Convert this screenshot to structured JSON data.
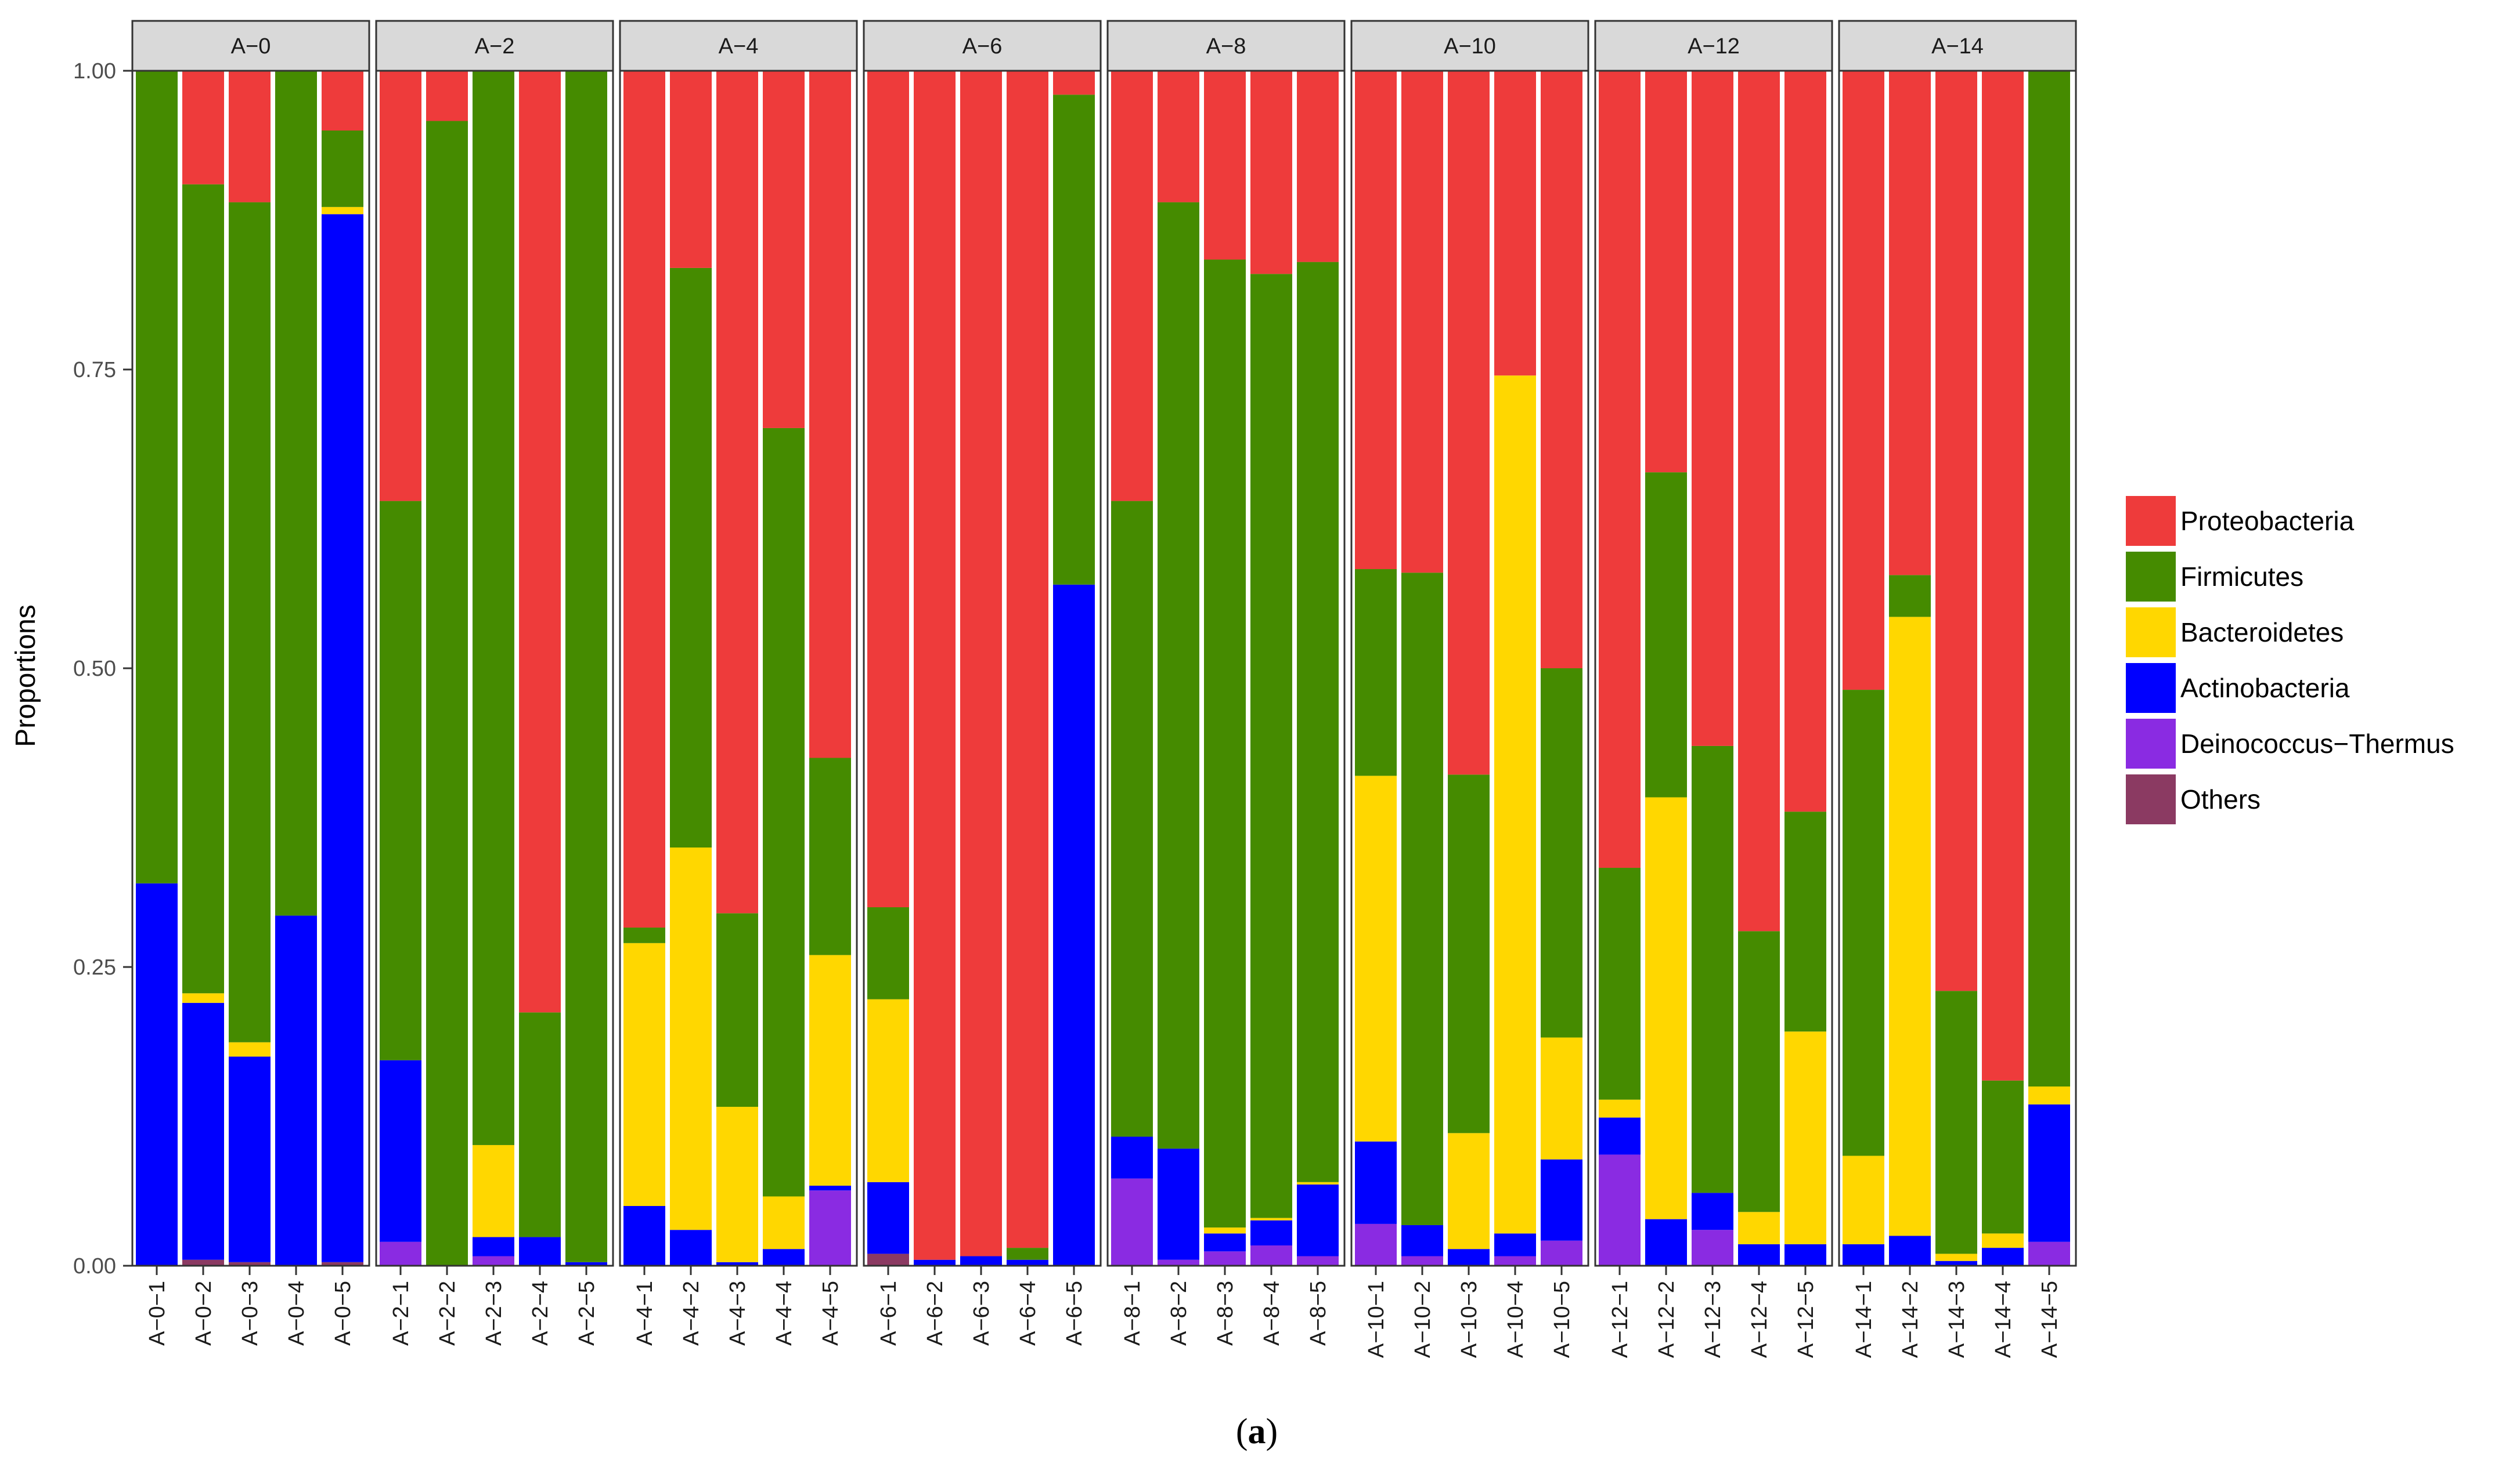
{
  "chart_data": {
    "type": "bar",
    "stacked": true,
    "ylabel": "Proportions",
    "xlabel": "",
    "ylim": [
      0,
      1
    ],
    "yticks": [
      0,
      0.25,
      0.5,
      0.75,
      1
    ],
    "ytick_labels": [
      "0.00",
      "0.25",
      "0.50",
      "0.75",
      "1.00"
    ],
    "caption": {
      "open": "(",
      "letter": "a",
      "close": ")"
    },
    "legend_position": "right",
    "series": [
      {
        "name": "Proteobacteria",
        "color": "#ee3b3b"
      },
      {
        "name": "Firmicutes",
        "color": "#458b00"
      },
      {
        "name": "Bacteroidetes",
        "color": "#ffd700"
      },
      {
        "name": "Actinobacteria",
        "color": "#0000ff"
      },
      {
        "name": "Deinococcus−Thermus",
        "color": "#8a2be2"
      },
      {
        "name": "Others",
        "color": "#8b3a62"
      }
    ],
    "stack_order_bottom_to_top": [
      "Others",
      "Deinococcus−Thermus",
      "Actinobacteria",
      "Bacteroidetes",
      "Firmicutes",
      "Proteobacteria"
    ],
    "facets": [
      {
        "label": "A−0",
        "samples": [
          {
            "label": "A−0−1",
            "values": {
              "Others": 0,
              "Deinococcus−Thermus": 0,
              "Actinobacteria": 0.32,
              "Bacteroidetes": 0,
              "Firmicutes": 0.68,
              "Proteobacteria": 0
            }
          },
          {
            "label": "A−0−2",
            "values": {
              "Others": 0.005,
              "Deinococcus−Thermus": 0,
              "Actinobacteria": 0.215,
              "Bacteroidetes": 0.008,
              "Firmicutes": 0.677,
              "Proteobacteria": 0.095
            }
          },
          {
            "label": "A−0−3",
            "values": {
              "Others": 0.003,
              "Deinococcus−Thermus": 0,
              "Actinobacteria": 0.172,
              "Bacteroidetes": 0.012,
              "Firmicutes": 0.703,
              "Proteobacteria": 0.11
            }
          },
          {
            "label": "A−0−4",
            "values": {
              "Others": 0,
              "Deinococcus−Thermus": 0,
              "Actinobacteria": 0.293,
              "Bacteroidetes": 0,
              "Firmicutes": 0.707,
              "Proteobacteria": 0
            }
          },
          {
            "label": "A−0−5",
            "values": {
              "Others": 0.003,
              "Deinococcus−Thermus": 0,
              "Actinobacteria": 0.877,
              "Bacteroidetes": 0.006,
              "Firmicutes": 0.064,
              "Proteobacteria": 0.05
            }
          }
        ]
      },
      {
        "label": "A−2",
        "samples": [
          {
            "label": "A−2−1",
            "values": {
              "Others": 0,
              "Deinococcus−Thermus": 0.02,
              "Actinobacteria": 0.152,
              "Bacteroidetes": 0,
              "Firmicutes": 0.468,
              "Proteobacteria": 0.36
            }
          },
          {
            "label": "A−2−2",
            "values": {
              "Others": 0,
              "Deinococcus−Thermus": 0,
              "Actinobacteria": 0,
              "Bacteroidetes": 0,
              "Firmicutes": 0.958,
              "Proteobacteria": 0.042
            }
          },
          {
            "label": "A−2−3",
            "values": {
              "Others": 0,
              "Deinococcus−Thermus": 0.008,
              "Actinobacteria": 0.016,
              "Bacteroidetes": 0.077,
              "Firmicutes": 0.899,
              "Proteobacteria": 0
            }
          },
          {
            "label": "A−2−4",
            "values": {
              "Others": 0,
              "Deinococcus−Thermus": 0,
              "Actinobacteria": 0.024,
              "Bacteroidetes": 0,
              "Firmicutes": 0.188,
              "Proteobacteria": 0.788
            }
          },
          {
            "label": "A−2−5",
            "values": {
              "Others": 0,
              "Deinococcus−Thermus": 0,
              "Actinobacteria": 0.003,
              "Bacteroidetes": 0,
              "Firmicutes": 0.997,
              "Proteobacteria": 0
            }
          }
        ]
      },
      {
        "label": "A−4",
        "samples": [
          {
            "label": "A−4−1",
            "values": {
              "Others": 0,
              "Deinococcus−Thermus": 0,
              "Actinobacteria": 0.05,
              "Bacteroidetes": 0.22,
              "Firmicutes": 0.013,
              "Proteobacteria": 0.717
            }
          },
          {
            "label": "A−4−2",
            "values": {
              "Others": 0,
              "Deinococcus−Thermus": 0,
              "Actinobacteria": 0.03,
              "Bacteroidetes": 0.32,
              "Firmicutes": 0.485,
              "Proteobacteria": 0.165
            }
          },
          {
            "label": "A−4−3",
            "values": {
              "Others": 0,
              "Deinococcus−Thermus": 0,
              "Actinobacteria": 0.003,
              "Bacteroidetes": 0.13,
              "Firmicutes": 0.162,
              "Proteobacteria": 0.705
            }
          },
          {
            "label": "A−4−4",
            "values": {
              "Others": 0,
              "Deinococcus−Thermus": 0,
              "Actinobacteria": 0.014,
              "Bacteroidetes": 0.044,
              "Firmicutes": 0.643,
              "Proteobacteria": 0.299
            }
          },
          {
            "label": "A−4−5",
            "values": {
              "Others": 0,
              "Deinococcus−Thermus": 0.063,
              "Actinobacteria": 0.004,
              "Bacteroidetes": 0.193,
              "Firmicutes": 0.165,
              "Proteobacteria": 0.575
            }
          }
        ]
      },
      {
        "label": "A−6",
        "samples": [
          {
            "label": "A−6−1",
            "values": {
              "Others": 0.01,
              "Deinococcus−Thermus": 0,
              "Actinobacteria": 0.06,
              "Bacteroidetes": 0.153,
              "Firmicutes": 0.077,
              "Proteobacteria": 0.7
            }
          },
          {
            "label": "A−6−2",
            "values": {
              "Others": 0,
              "Deinococcus−Thermus": 0,
              "Actinobacteria": 0.005,
              "Bacteroidetes": 0,
              "Firmicutes": 0,
              "Proteobacteria": 0.995
            }
          },
          {
            "label": "A−6−3",
            "values": {
              "Others": 0,
              "Deinococcus−Thermus": 0,
              "Actinobacteria": 0.008,
              "Bacteroidetes": 0,
              "Firmicutes": 0,
              "Proteobacteria": 0.992
            }
          },
          {
            "label": "A−6−4",
            "values": {
              "Others": 0,
              "Deinococcus−Thermus": 0,
              "Actinobacteria": 0.005,
              "Bacteroidetes": 0,
              "Firmicutes": 0.01,
              "Proteobacteria": 0.985
            }
          },
          {
            "label": "A−6−5",
            "values": {
              "Others": 0,
              "Deinococcus−Thermus": 0,
              "Actinobacteria": 0.57,
              "Bacteroidetes": 0,
              "Firmicutes": 0.41,
              "Proteobacteria": 0.02
            }
          }
        ]
      },
      {
        "label": "A−8",
        "samples": [
          {
            "label": "A−8−1",
            "values": {
              "Others": 0,
              "Deinococcus−Thermus": 0.073,
              "Actinobacteria": 0.035,
              "Bacteroidetes": 0,
              "Firmicutes": 0.532,
              "Proteobacteria": 0.36
            }
          },
          {
            "label": "A−8−2",
            "values": {
              "Others": 0,
              "Deinococcus−Thermus": 0.005,
              "Actinobacteria": 0.093,
              "Bacteroidetes": 0,
              "Firmicutes": 0.792,
              "Proteobacteria": 0.11
            }
          },
          {
            "label": "A−8−3",
            "values": {
              "Others": 0,
              "Deinococcus−Thermus": 0.012,
              "Actinobacteria": 0.015,
              "Bacteroidetes": 0.005,
              "Firmicutes": 0.81,
              "Proteobacteria": 0.158
            }
          },
          {
            "label": "A−8−4",
            "values": {
              "Others": 0,
              "Deinococcus−Thermus": 0.017,
              "Actinobacteria": 0.021,
              "Bacteroidetes": 0.002,
              "Firmicutes": 0.79,
              "Proteobacteria": 0.17
            }
          },
          {
            "label": "A−8−5",
            "values": {
              "Others": 0,
              "Deinococcus−Thermus": 0.008,
              "Actinobacteria": 0.06,
              "Bacteroidetes": 0.002,
              "Firmicutes": 0.77,
              "Proteobacteria": 0.16
            }
          }
        ]
      },
      {
        "label": "A−10",
        "samples": [
          {
            "label": "A−10−1",
            "values": {
              "Others": 0,
              "Deinococcus−Thermus": 0.035,
              "Actinobacteria": 0.069,
              "Bacteroidetes": 0.306,
              "Firmicutes": 0.173,
              "Proteobacteria": 0.417
            }
          },
          {
            "label": "A−10−2",
            "values": {
              "Others": 0,
              "Deinococcus−Thermus": 0.008,
              "Actinobacteria": 0.026,
              "Bacteroidetes": 0,
              "Firmicutes": 0.546,
              "Proteobacteria": 0.42
            }
          },
          {
            "label": "A−10−3",
            "values": {
              "Others": 0,
              "Deinococcus−Thermus": 0,
              "Actinobacteria": 0.014,
              "Bacteroidetes": 0.097,
              "Firmicutes": 0.3,
              "Proteobacteria": 0.589
            }
          },
          {
            "label": "A−10−4",
            "values": {
              "Others": 0,
              "Deinococcus−Thermus": 0.008,
              "Actinobacteria": 0.019,
              "Bacteroidetes": 0.718,
              "Firmicutes": 0,
              "Proteobacteria": 0.255
            }
          },
          {
            "label": "A−10−5",
            "values": {
              "Others": 0,
              "Deinococcus−Thermus": 0.021,
              "Actinobacteria": 0.068,
              "Bacteroidetes": 0.102,
              "Firmicutes": 0.309,
              "Proteobacteria": 0.5
            }
          }
        ]
      },
      {
        "label": "A−12",
        "samples": [
          {
            "label": "A−12−1",
            "values": {
              "Others": 0,
              "Deinococcus−Thermus": 0.093,
              "Actinobacteria": 0.031,
              "Bacteroidetes": 0.015,
              "Firmicutes": 0.194,
              "Proteobacteria": 0.667
            }
          },
          {
            "label": "A−12−2",
            "values": {
              "Others": 0,
              "Deinococcus−Thermus": 0,
              "Actinobacteria": 0.039,
              "Bacteroidetes": 0.353,
              "Firmicutes": 0.272,
              "Proteobacteria": 0.336
            }
          },
          {
            "label": "A−12−3",
            "values": {
              "Others": 0,
              "Deinococcus−Thermus": 0.03,
              "Actinobacteria": 0.031,
              "Bacteroidetes": 0,
              "Firmicutes": 0.374,
              "Proteobacteria": 0.565
            }
          },
          {
            "label": "A−12−4",
            "values": {
              "Others": 0,
              "Deinococcus−Thermus": 0,
              "Actinobacteria": 0.018,
              "Bacteroidetes": 0.027,
              "Firmicutes": 0.235,
              "Proteobacteria": 0.72
            }
          },
          {
            "label": "A−12−5",
            "values": {
              "Others": 0,
              "Deinococcus−Thermus": 0,
              "Actinobacteria": 0.018,
              "Bacteroidetes": 0.178,
              "Firmicutes": 0.184,
              "Proteobacteria": 0.62
            }
          }
        ]
      },
      {
        "label": "A−14",
        "samples": [
          {
            "label": "A−14−1",
            "values": {
              "Others": 0,
              "Deinococcus−Thermus": 0,
              "Actinobacteria": 0.018,
              "Bacteroidetes": 0.074,
              "Firmicutes": 0.39,
              "Proteobacteria": 0.518
            }
          },
          {
            "label": "A−14−2",
            "values": {
              "Others": 0,
              "Deinococcus−Thermus": 0,
              "Actinobacteria": 0.025,
              "Bacteroidetes": 0.518,
              "Firmicutes": 0.035,
              "Proteobacteria": 0.422
            }
          },
          {
            "label": "A−14−3",
            "values": {
              "Others": 0,
              "Deinococcus−Thermus": 0,
              "Actinobacteria": 0.004,
              "Bacteroidetes": 0.006,
              "Firmicutes": 0.22,
              "Proteobacteria": 0.77
            }
          },
          {
            "label": "A−14−4",
            "values": {
              "Others": 0,
              "Deinococcus−Thermus": 0,
              "Actinobacteria": 0.015,
              "Bacteroidetes": 0.012,
              "Firmicutes": 0.128,
              "Proteobacteria": 0.845
            }
          },
          {
            "label": "A−14−5",
            "values": {
              "Others": 0,
              "Deinococcus−Thermus": 0.02,
              "Actinobacteria": 0.115,
              "Bacteroidetes": 0.015,
              "Firmicutes": 0.85,
              "Proteobacteria": 0
            }
          }
        ]
      }
    ]
  }
}
